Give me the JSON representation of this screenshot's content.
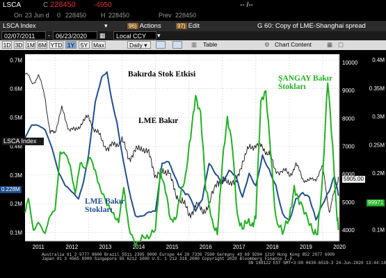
{
  "header": {
    "ticker": "LSCA",
    "c_label": "C",
    "price": "228450",
    "change": "-4950",
    "quote_right": "-- /--",
    "on_label": "On",
    "date": "23 Jun d",
    "o_label": "0",
    "open": "228450",
    "h_label": "H",
    "high": "228450",
    "prev_label": "Prev",
    "prev": "228450"
  },
  "toolbar": {
    "instrument": "LSCA Index",
    "dropdown": "▾",
    "actions_num": "96)",
    "actions_label": "Actions",
    "edit_num": "97)",
    "edit_label": "Edit",
    "title": "G 60: Copy of LME-Shanghai spread"
  },
  "dates": {
    "start": "02/07/2011",
    "end": "06/23/2020",
    "currency": "Local CCY"
  },
  "periods": [
    "1D",
    "3D",
    "1M",
    "6M",
    "YTD",
    "1Y",
    "5Y",
    "Max"
  ],
  "selected_period": "1Y",
  "frequency": "Daily",
  "table_label": "Table",
  "chart_content_label": "Chart Content",
  "chart_data": {
    "type": "line",
    "title": "",
    "inset_label": "LSCA Index",
    "x_ticks": [
      "2011",
      "2012",
      "2013",
      "2014",
      "2015",
      "2016",
      "2017",
      "2018",
      "2019",
      "2020"
    ],
    "x_range": [
      2011.1,
      2020.5
    ],
    "left_axis": {
      "ticks": [
        "0.1M",
        "0.2M",
        "0.3M",
        "0.4M",
        "0.5M",
        "0.6M",
        "0.7M"
      ],
      "range": [
        0.07,
        0.72
      ]
    },
    "right_axis_outer": {
      "ticks": [
        "0.1M",
        "0.15M",
        "0.2M",
        "0.25M",
        "0.3M",
        "0.35M",
        "0.4M"
      ],
      "range": [
        0.08,
        0.41
      ]
    },
    "right_axis_inner": {
      "ticks": [
        "4000",
        "5000",
        "6000",
        "7000",
        "8000",
        "9000",
        "10000"
      ],
      "range": [
        3600,
        10300
      ]
    },
    "series": [
      {
        "name": "LME Bakır",
        "axis": "right_inner",
        "color": "#d9d9d9",
        "points": [
          [
            2011.1,
            9600
          ],
          [
            2011.3,
            9300
          ],
          [
            2011.5,
            9500
          ],
          [
            2011.7,
            8800
          ],
          [
            2011.85,
            7400
          ],
          [
            2012.0,
            7600
          ],
          [
            2012.2,
            8300
          ],
          [
            2012.4,
            7700
          ],
          [
            2012.6,
            7500
          ],
          [
            2012.8,
            7900
          ],
          [
            2013.0,
            8000
          ],
          [
            2013.2,
            7600
          ],
          [
            2013.4,
            7200
          ],
          [
            2013.6,
            6900
          ],
          [
            2013.8,
            7100
          ],
          [
            2014.0,
            7200
          ],
          [
            2014.2,
            6600
          ],
          [
            2014.4,
            6800
          ],
          [
            2014.6,
            7000
          ],
          [
            2014.8,
            6700
          ],
          [
            2015.0,
            6000
          ],
          [
            2015.2,
            6000
          ],
          [
            2015.4,
            6200
          ],
          [
            2015.6,
            5200
          ],
          [
            2015.8,
            5100
          ],
          [
            2016.0,
            4500
          ],
          [
            2016.2,
            4900
          ],
          [
            2016.4,
            4700
          ],
          [
            2016.6,
            4850
          ],
          [
            2016.85,
            5800
          ],
          [
            2017.0,
            5700
          ],
          [
            2017.2,
            5800
          ],
          [
            2017.4,
            5600
          ],
          [
            2017.6,
            6500
          ],
          [
            2017.8,
            6900
          ],
          [
            2018.0,
            7100
          ],
          [
            2018.2,
            6900
          ],
          [
            2018.4,
            6800
          ],
          [
            2018.55,
            6200
          ],
          [
            2018.8,
            6100
          ],
          [
            2019.0,
            6000
          ],
          [
            2019.2,
            6300
          ],
          [
            2019.4,
            5900
          ],
          [
            2019.6,
            5700
          ],
          [
            2019.8,
            5900
          ],
          [
            2020.0,
            6200
          ],
          [
            2020.2,
            4700
          ],
          [
            2020.35,
            5300
          ],
          [
            2020.47,
            5905
          ]
        ]
      },
      {
        "name": "LME Bakır Stokları",
        "axis": "left",
        "color": "#1f4e8c",
        "points": [
          [
            2011.1,
            0.43
          ],
          [
            2011.3,
            0.47
          ],
          [
            2011.5,
            0.47
          ],
          [
            2011.7,
            0.46
          ],
          [
            2011.9,
            0.4
          ],
          [
            2012.1,
            0.31
          ],
          [
            2012.3,
            0.26
          ],
          [
            2012.5,
            0.24
          ],
          [
            2012.7,
            0.22
          ],
          [
            2012.85,
            0.28
          ],
          [
            2013.0,
            0.37
          ],
          [
            2013.2,
            0.55
          ],
          [
            2013.4,
            0.64
          ],
          [
            2013.55,
            0.66
          ],
          [
            2013.7,
            0.56
          ],
          [
            2013.85,
            0.48
          ],
          [
            2014.0,
            0.37
          ],
          [
            2014.2,
            0.25
          ],
          [
            2014.4,
            0.16
          ],
          [
            2014.6,
            0.16
          ],
          [
            2014.8,
            0.17
          ],
          [
            2015.0,
            0.17
          ],
          [
            2015.2,
            0.34
          ],
          [
            2015.4,
            0.35
          ],
          [
            2015.5,
            0.32
          ],
          [
            2015.7,
            0.26
          ],
          [
            2015.9,
            0.23
          ],
          [
            2016.0,
            0.23
          ],
          [
            2016.2,
            0.18
          ],
          [
            2016.4,
            0.22
          ],
          [
            2016.6,
            0.34
          ],
          [
            2016.8,
            0.3
          ],
          [
            2017.0,
            0.27
          ],
          [
            2017.2,
            0.32
          ],
          [
            2017.4,
            0.3
          ],
          [
            2017.6,
            0.22
          ],
          [
            2017.8,
            0.3
          ],
          [
            2018.0,
            0.26
          ],
          [
            2018.2,
            0.37
          ],
          [
            2018.4,
            0.32
          ],
          [
            2018.6,
            0.26
          ],
          [
            2018.8,
            0.16
          ],
          [
            2019.0,
            0.14
          ],
          [
            2019.2,
            0.22
          ],
          [
            2019.4,
            0.24
          ],
          [
            2019.6,
            0.22
          ],
          [
            2019.8,
            0.14
          ],
          [
            2020.0,
            0.2
          ],
          [
            2020.2,
            0.25
          ],
          [
            2020.35,
            0.3
          ],
          [
            2020.47,
            0.228
          ]
        ]
      },
      {
        "name": "ŞANGAY Bakır Stokları",
        "axis": "right_outer",
        "color": "#22b022",
        "points": [
          [
            2011.1,
            0.13
          ],
          [
            2011.2,
            0.15
          ],
          [
            2011.35,
            0.1
          ],
          [
            2011.5,
            0.12
          ],
          [
            2011.7,
            0.09
          ],
          [
            2011.85,
            0.12
          ],
          [
            2012.0,
            0.14
          ],
          [
            2012.15,
            0.24
          ],
          [
            2012.3,
            0.23
          ],
          [
            2012.45,
            0.21
          ],
          [
            2012.6,
            0.17
          ],
          [
            2012.75,
            0.22
          ],
          [
            2012.9,
            0.2
          ],
          [
            2013.05,
            0.23
          ],
          [
            2013.2,
            0.21
          ],
          [
            2013.35,
            0.17
          ],
          [
            2013.55,
            0.14
          ],
          [
            2013.75,
            0.13
          ],
          [
            2013.9,
            0.12
          ],
          [
            2014.05,
            0.17
          ],
          [
            2014.2,
            0.1
          ],
          [
            2014.4,
            0.08
          ],
          [
            2014.6,
            0.09
          ],
          [
            2014.8,
            0.08
          ],
          [
            2015.0,
            0.1
          ],
          [
            2015.15,
            0.21
          ],
          [
            2015.3,
            0.17
          ],
          [
            2015.45,
            0.11
          ],
          [
            2015.6,
            0.12
          ],
          [
            2015.75,
            0.17
          ],
          [
            2015.9,
            0.19
          ],
          [
            2016.05,
            0.26
          ],
          [
            2016.2,
            0.34
          ],
          [
            2016.35,
            0.31
          ],
          [
            2016.5,
            0.17
          ],
          [
            2016.7,
            0.11
          ],
          [
            2016.85,
            0.1
          ],
          [
            2017.0,
            0.22
          ],
          [
            2017.15,
            0.29
          ],
          [
            2017.3,
            0.25
          ],
          [
            2017.45,
            0.13
          ],
          [
            2017.6,
            0.1
          ],
          [
            2017.75,
            0.11
          ],
          [
            2017.9,
            0.11
          ],
          [
            2018.0,
            0.13
          ],
          [
            2018.15,
            0.32
          ],
          [
            2018.3,
            0.34
          ],
          [
            2018.45,
            0.24
          ],
          [
            2018.6,
            0.12
          ],
          [
            2018.8,
            0.09
          ],
          [
            2019.0,
            0.12
          ],
          [
            2019.15,
            0.18
          ],
          [
            2019.3,
            0.15
          ],
          [
            2019.5,
            0.12
          ],
          [
            2019.7,
            0.1
          ],
          [
            2019.85,
            0.1
          ],
          [
            2020.0,
            0.19
          ],
          [
            2020.15,
            0.36
          ],
          [
            2020.3,
            0.25
          ],
          [
            2020.42,
            0.13
          ],
          [
            2020.47,
            0.0997
          ]
        ]
      }
    ],
    "annotations": {
      "top_title": "Bakırda Stok Etkisi",
      "lme_copper": "LME Bakır",
      "lme_stocks": "LME Bakır\nStokları",
      "shanghai_stocks": "ŞANGAY Bakır\nStokları"
    },
    "last_value_tags": {
      "left": "0.228M",
      "right_inner": "5905.00",
      "right_outer": "99971"
    }
  },
  "footer": {
    "line1": "Australia 61 2 9777 8600 Brazil 5511 2395 9000 Europe 44 20 7330 7500 Germany 49 69 9204 1210 Hong Kong 852 2977 6000",
    "line2": "Japan 81 3 4565 8900        Singapore 65 6212 1000        U.S. 1 212 318 2000        Copyright 2020 Bloomberg Finance L.P.",
    "line3": "SN 168122 EST  GMT+3:00 H430-6519-3 24-Jun-2020 13:44:18"
  }
}
